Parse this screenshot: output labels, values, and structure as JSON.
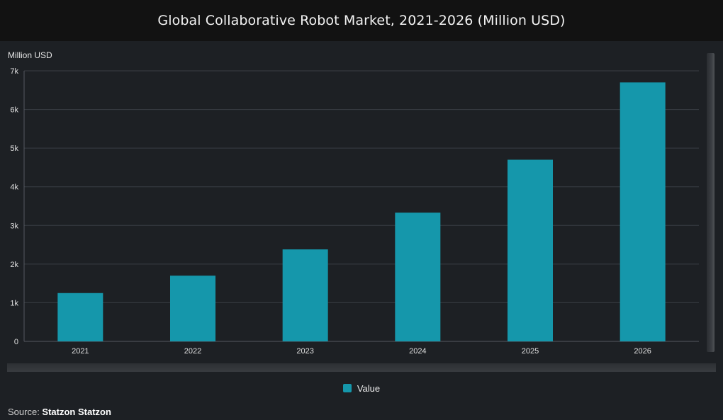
{
  "title": "Global Collaborative Robot Market, 2021-2026 (Million USD)",
  "colors": {
    "background": "#1d2024",
    "title_bar": "#121212",
    "bar": "#1597ab",
    "grid": "#3a3e44",
    "text": "#e6e6e6"
  },
  "chart_data": {
    "type": "bar",
    "title": "Global Collaborative Robot Market, 2021-2026 (Million USD)",
    "ylabel": "Million USD",
    "xlabel": "",
    "categories": [
      "2021",
      "2022",
      "2023",
      "2024",
      "2025",
      "2026"
    ],
    "series": [
      {
        "name": "Value",
        "values": [
          1250,
          1700,
          2380,
          3330,
          4700,
          6700
        ]
      }
    ],
    "ylim": [
      0,
      7000
    ],
    "yticks": [
      0,
      1000,
      2000,
      3000,
      4000,
      5000,
      6000,
      7000
    ],
    "ytick_labels": [
      "0",
      "1k",
      "2k",
      "3k",
      "4k",
      "5k",
      "6k",
      "7k"
    ],
    "grid": true,
    "legend": "bottom-center"
  },
  "legend": {
    "label": "Value"
  },
  "source": {
    "prefix": "Source: ",
    "name": "Statzon Statzon"
  }
}
